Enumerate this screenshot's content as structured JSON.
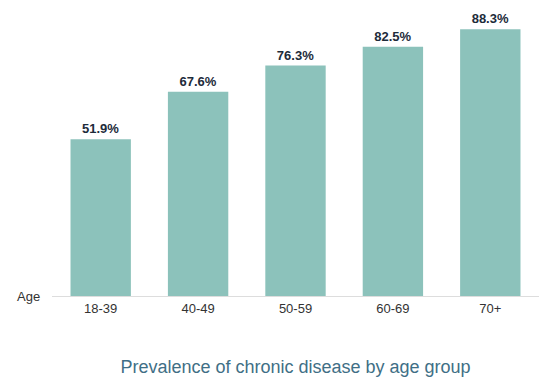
{
  "chart_data": {
    "type": "bar",
    "title": "Prevalence of chronic disease by age group",
    "x_label": "Age",
    "categories": [
      "18-39",
      "40-49",
      "50-59",
      "60-69",
      "70+"
    ],
    "values": [
      51.9,
      67.6,
      76.3,
      82.5,
      88.3
    ],
    "value_labels": [
      "51.9%",
      "67.6%",
      "76.3%",
      "82.5%",
      "88.3%"
    ],
    "color": "#8cc2bb",
    "ylim": [
      0,
      98
    ],
    "yticks": [],
    "grid": false,
    "data_labels": true,
    "tick_labels": "x"
  }
}
